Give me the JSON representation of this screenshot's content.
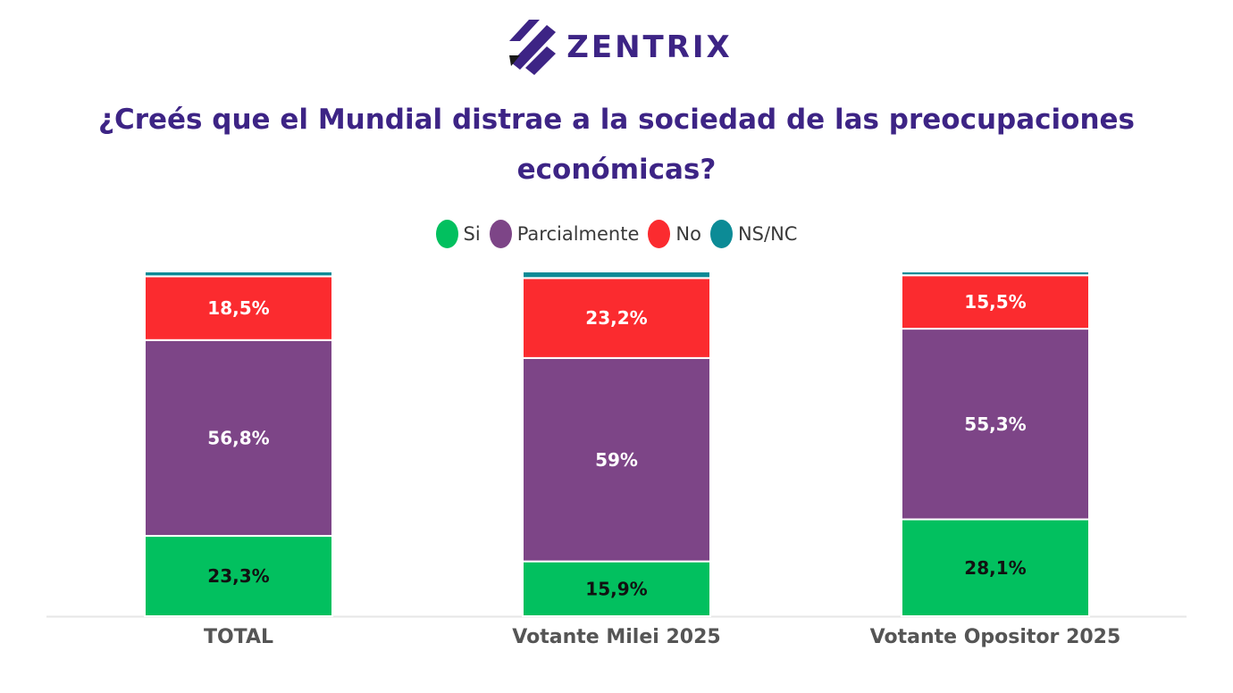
{
  "brand": {
    "name": "ZENTRIX"
  },
  "chart_data": {
    "type": "bar",
    "stacked": true,
    "title": "¿Creés que el Mundial distrae a la sociedad de las preocupaciones económicas?",
    "categories": [
      "TOTAL",
      "Votante Milei 2025",
      "Votante Opositor 2025"
    ],
    "series": [
      {
        "name": "Si",
        "color": "#02c05f",
        "values": [
          23.3,
          15.9,
          28.1
        ],
        "labels": [
          "23,3%",
          "15,9%",
          "28,1%"
        ]
      },
      {
        "name": "Parcialmente",
        "color": "#7d4587",
        "values": [
          56.8,
          59,
          55.3
        ],
        "labels": [
          "56,8%",
          "59%",
          "55,3%"
        ]
      },
      {
        "name": "No",
        "color": "#fb2b2f",
        "values": [
          18.5,
          23.2,
          15.5
        ],
        "labels": [
          "18,5%",
          "23,2%",
          "15,5%"
        ]
      },
      {
        "name": "NS/NC",
        "color": "#0c8b96",
        "values": [
          1.4,
          1.9,
          1.1
        ],
        "labels": [
          "",
          "",
          ""
        ]
      }
    ],
    "ylim": [
      0,
      100
    ],
    "legend_position": "top-center",
    "grid": false
  }
}
